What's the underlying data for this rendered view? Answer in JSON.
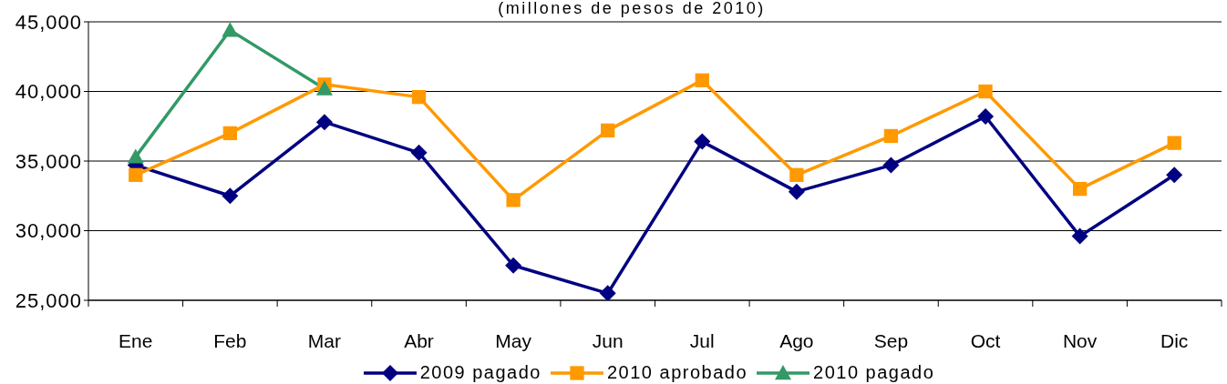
{
  "chart_data": {
    "type": "line",
    "title": "(millones de pesos de 2010)",
    "categories": [
      "Ene",
      "Feb",
      "Mar",
      "Abr",
      "May",
      "Jun",
      "Jul",
      "Ago",
      "Sep",
      "Oct",
      "Nov",
      "Dic"
    ],
    "series": [
      {
        "name": "2009 pagado",
        "color": "#000080",
        "marker": "diamond",
        "values": [
          34700,
          32500,
          37800,
          35600,
          27500,
          25500,
          36400,
          32800,
          34700,
          38200,
          29600,
          34000
        ]
      },
      {
        "name": "2010 aprobado",
        "color": "#ff9900",
        "marker": "square",
        "values": [
          34000,
          37000,
          40500,
          39600,
          32200,
          37200,
          40800,
          34000,
          36800,
          40000,
          33000,
          36300
        ]
      },
      {
        "name": "2010 pagado",
        "color": "#339966",
        "marker": "triangle",
        "values": [
          35300,
          44400,
          40200,
          null,
          null,
          null,
          null,
          null,
          null,
          null,
          null,
          null
        ]
      }
    ],
    "ylim": [
      25000,
      45000
    ],
    "yticks": [
      {
        "value": 25000,
        "label": "25,000"
      },
      {
        "value": 30000,
        "label": "30,000"
      },
      {
        "value": 35000,
        "label": "35,000"
      },
      {
        "value": 40000,
        "label": "40,000"
      },
      {
        "value": 45000,
        "label": "45,000"
      }
    ],
    "grid": "y",
    "legend": "bottom"
  }
}
